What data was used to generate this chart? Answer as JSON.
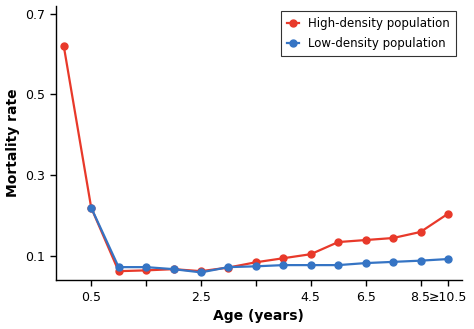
{
  "x_data": [
    0,
    1,
    2,
    3,
    4,
    5,
    6,
    7,
    8,
    9,
    10,
    11,
    12,
    13,
    14
  ],
  "high_density": [
    0.62,
    0.22,
    0.063,
    0.065,
    0.068,
    0.063,
    0.072,
    0.085,
    0.095,
    0.105,
    0.135,
    0.14,
    0.145,
    0.16,
    0.205
  ],
  "low_density": [
    null,
    0.22,
    0.073,
    0.073,
    0.068,
    0.06,
    0.073,
    0.075,
    0.078,
    0.078,
    0.078,
    0.083,
    0.086,
    0.089,
    0.093
  ],
  "tick_positions": [
    1,
    3,
    5,
    7,
    9,
    11,
    13,
    14
  ],
  "tick_labels": [
    "0.5",
    "",
    "2.5",
    "",
    "4.5",
    "6.5",
    "8.5",
    "≥10.5"
  ],
  "ylabel": "Mortality rate",
  "xlabel": "Age (years)",
  "ylim": [
    0.04,
    0.72
  ],
  "yticks": [
    0.1,
    0.3,
    0.5,
    0.7
  ],
  "color_high": "#e8392a",
  "color_low": "#3574c4",
  "legend_high": "High-density population",
  "legend_low": "Low-density population",
  "bg_color": "#ffffff",
  "marker_size": 5,
  "linewidth": 1.6
}
